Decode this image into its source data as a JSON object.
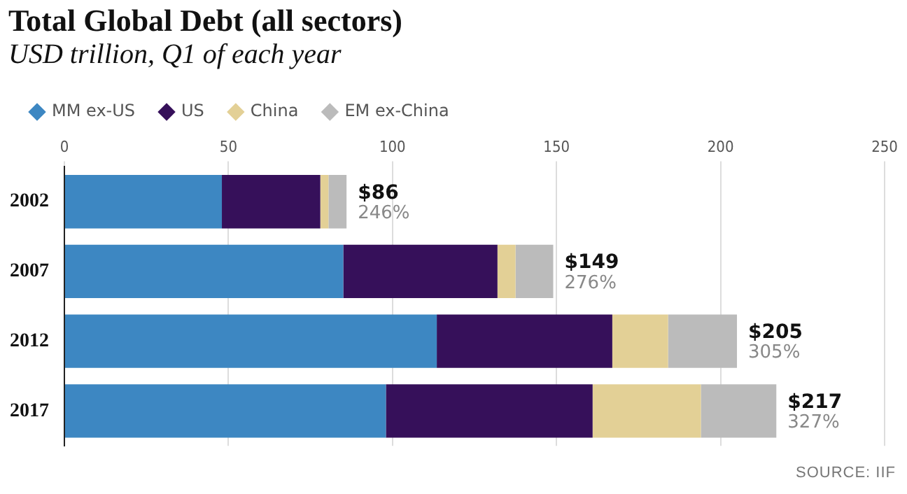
{
  "chart_data": {
    "type": "bar",
    "orientation": "horizontal",
    "stacked": true,
    "title": "Total Global Debt (all sectors)",
    "subtitle": "USD trillion, Q1 of each year",
    "categories": [
      "2002",
      "2007",
      "2012",
      "2017"
    ],
    "series": [
      {
        "name": "MM ex-US",
        "color": "#3d87c2",
        "values": [
          48,
          85,
          113.5,
          98
        ]
      },
      {
        "name": "US",
        "color": "#36105a",
        "values": [
          30,
          47,
          53.5,
          63
        ]
      },
      {
        "name": "China",
        "color": "#e3d096",
        "values": [
          2.5,
          5.5,
          17,
          33
        ]
      },
      {
        "name": "EM ex-China",
        "color": "#bbbbbb",
        "values": [
          5.5,
          11.5,
          21,
          23
        ]
      }
    ],
    "totals": [
      "$86",
      "$149",
      "$205",
      "$217"
    ],
    "xlim": [
      0,
      250
    ],
    "xticks": [
      0,
      50,
      100,
      150,
      200,
      250
    ],
    "grid": "x",
    "legend": "top left",
    "annotations": [
      {
        "text": "246%",
        "x": 86,
        "y": "2002"
      },
      {
        "text": "276%",
        "x": 149,
        "y": "2007"
      },
      {
        "text": "305%",
        "x": 205,
        "y": "2012"
      },
      {
        "text": "327%",
        "x": 217,
        "y": "2017"
      },
      "SOURCE: IIF"
    ]
  }
}
